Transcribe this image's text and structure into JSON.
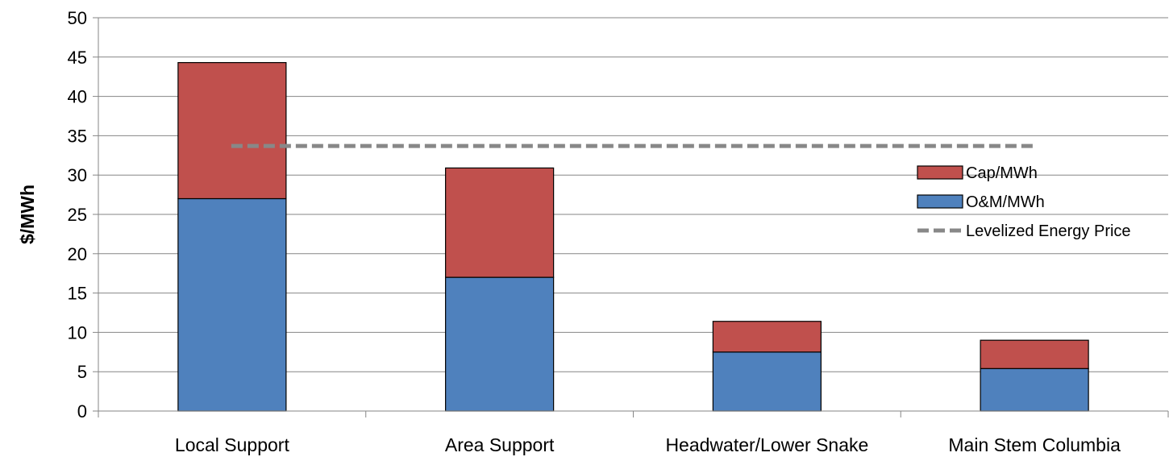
{
  "chart_data": {
    "type": "bar",
    "stacked": true,
    "title": "",
    "xlabel": "",
    "ylabel": "$/MWh",
    "ylim": [
      0,
      50
    ],
    "yticks": [
      0,
      5,
      10,
      15,
      20,
      25,
      30,
      35,
      40,
      45,
      50
    ],
    "grid": true,
    "legend_position": "right",
    "categories": [
      "Local Support",
      "Area Support",
      "Headwater/Lower Snake",
      "Main Stem Columbia"
    ],
    "series": [
      {
        "name": "O&M/MWh",
        "color": "#4f81bd",
        "values": [
          27.0,
          17.0,
          7.5,
          5.4
        ]
      },
      {
        "name": "Cap/MWh",
        "color": "#c0504d",
        "values": [
          17.3,
          13.9,
          3.9,
          3.6
        ]
      }
    ],
    "reference_line": {
      "name": "Levelized Energy Price",
      "value": 33.7,
      "color": "#888888",
      "style": "dashed"
    },
    "legend": [
      {
        "label": "Cap/MWh",
        "kind": "bar",
        "color": "#c0504d"
      },
      {
        "label": "O&M/MWh",
        "kind": "bar",
        "color": "#4f81bd"
      },
      {
        "label": "Levelized Energy Price",
        "kind": "dashed-line",
        "color": "#888888"
      }
    ]
  }
}
